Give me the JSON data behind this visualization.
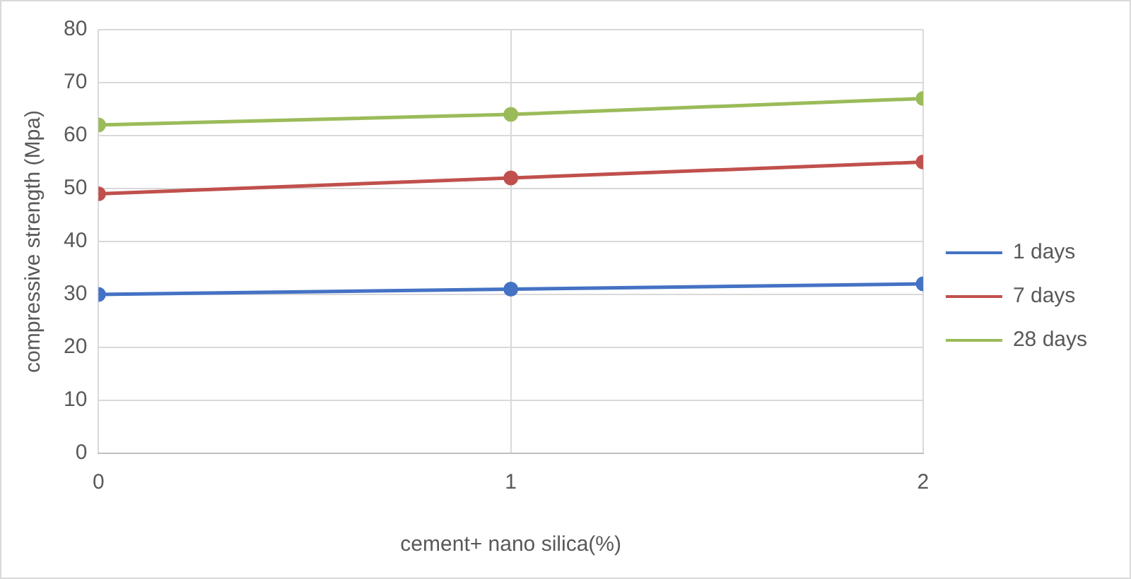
{
  "chart_data": {
    "type": "line",
    "xlabel": "cement+ nano silica(%)",
    "ylabel": "compressive strength (Mpa)",
    "x": [
      0,
      1,
      2
    ],
    "xlim": [
      0,
      2
    ],
    "xticks": [
      0,
      1,
      2
    ],
    "ylim": [
      0,
      80
    ],
    "yticks": [
      0,
      10,
      20,
      30,
      40,
      50,
      60,
      70,
      80
    ],
    "series": [
      {
        "name": "1 days",
        "color": "#4472c4",
        "values": [
          30,
          31,
          32
        ]
      },
      {
        "name": "7 days",
        "color": "#c0504d",
        "values": [
          49,
          52,
          55
        ]
      },
      {
        "name": "28 days",
        "color": "#9bbb59",
        "values": [
          62,
          64,
          67
        ]
      }
    ],
    "grid": true,
    "legend": "right",
    "marker": "circle",
    "line_style": "solid"
  }
}
